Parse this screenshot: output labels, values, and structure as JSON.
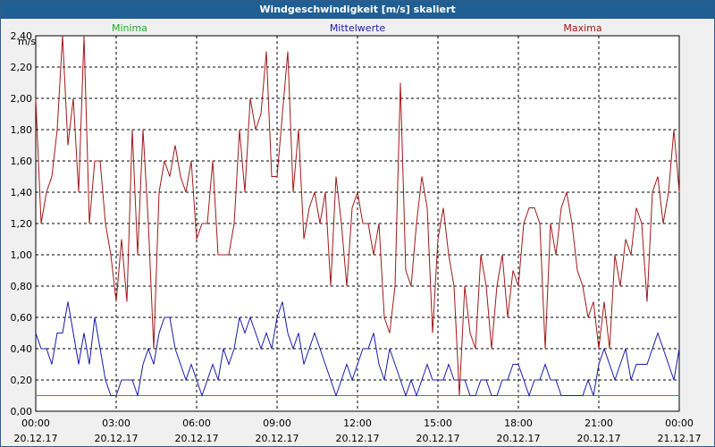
{
  "window": {
    "title": "Windgeschwindigkeit [m/s] skaliert"
  },
  "chart_data": {
    "type": "line",
    "title": "Windgeschwindigkeit [m/s] skaliert",
    "ylabel": "m/s",
    "xlabel": "",
    "ylim": [
      0,
      2.4
    ],
    "xlim": [
      0,
      24
    ],
    "grid": true,
    "legend_placement": "top",
    "y_ticks": [
      "0,00",
      "0,20",
      "0,40",
      "0,60",
      "0,80",
      "1,00",
      "1,20",
      "1,40",
      "1,60",
      "1,80",
      "2,00",
      "2,20",
      "2,40"
    ],
    "x_ticks": [
      {
        "time": "00:00",
        "date": "20.12.17"
      },
      {
        "time": "03:00",
        "date": "20.12.17"
      },
      {
        "time": "06:00",
        "date": "20.12.17"
      },
      {
        "time": "09:00",
        "date": "20.12.17"
      },
      {
        "time": "12:00",
        "date": "20.12.17"
      },
      {
        "time": "15:00",
        "date": "20.12.17"
      },
      {
        "time": "18:00",
        "date": "20.12.17"
      },
      {
        "time": "21:00",
        "date": "20.12.17"
      },
      {
        "time": "00:00",
        "date": "21.12.17"
      }
    ],
    "x_hours": [
      0,
      0.2,
      0.4,
      0.6,
      0.8,
      1,
      1.2,
      1.4,
      1.6,
      1.8,
      2,
      2.2,
      2.4,
      2.6,
      2.8,
      3,
      3.2,
      3.4,
      3.6,
      3.8,
      4,
      4.2,
      4.4,
      4.6,
      4.8,
      5,
      5.2,
      5.4,
      5.6,
      5.8,
      6,
      6.2,
      6.4,
      6.6,
      6.8,
      7,
      7.2,
      7.4,
      7.6,
      7.8,
      8,
      8.2,
      8.4,
      8.6,
      8.8,
      9,
      9.2,
      9.4,
      9.6,
      9.8,
      10,
      10.2,
      10.4,
      10.6,
      10.8,
      11,
      11.2,
      11.4,
      11.6,
      11.8,
      12,
      12.2,
      12.4,
      12.6,
      12.8,
      13,
      13.2,
      13.4,
      13.6,
      13.8,
      14,
      14.2,
      14.4,
      14.6,
      14.8,
      15,
      15.2,
      15.4,
      15.6,
      15.8,
      16,
      16.2,
      16.4,
      16.6,
      16.8,
      17,
      17.2,
      17.4,
      17.6,
      17.8,
      18,
      18.2,
      18.4,
      18.6,
      18.8,
      19,
      19.2,
      19.4,
      19.6,
      19.8,
      20,
      20.2,
      20.4,
      20.6,
      20.8,
      21,
      21.2,
      21.4,
      21.6,
      21.8,
      22,
      22.2,
      22.4,
      22.6,
      22.8,
      23,
      23.2,
      23.4,
      23.6,
      23.8,
      24
    ],
    "series": [
      {
        "name": "Minima",
        "color": "#22aa22",
        "values": [
          0.1,
          0.1,
          0.1,
          0.1,
          0.1,
          0.1,
          0.1,
          0.1,
          0.1,
          0.1,
          0.1,
          0.1,
          0.1,
          0.1,
          0.1,
          0.1,
          0.1,
          0.1,
          0.1,
          0.1,
          0.1,
          0.1,
          0.1,
          0.1,
          0.1,
          0.1,
          0.1,
          0.1,
          0.1,
          0.1,
          0.1,
          0.1,
          0.1,
          0.1,
          0.1,
          0.1,
          0.1,
          0.1,
          0.1,
          0.1,
          0.1,
          0.1,
          0.1,
          0.1,
          0.1,
          0.1,
          0.1,
          0.1,
          0.1,
          0.1,
          0.1,
          0.1,
          0.1,
          0.1,
          0.1,
          0.1,
          0.1,
          0.1,
          0.1,
          0.1,
          0.1,
          0.1,
          0.1,
          0.1,
          0.1,
          0.1,
          0.1,
          0.1,
          0.1,
          0.1,
          0.1,
          0.1,
          0.1,
          0.1,
          0.1,
          0.1,
          0.1,
          0.1,
          0.1,
          0.1,
          0.1,
          0.1,
          0.1,
          0.1,
          0.1,
          0.1,
          0.1,
          0.1,
          0.1,
          0.1,
          0.1,
          0.1,
          0.1,
          0.1,
          0.1,
          0.1,
          0.1,
          0.1,
          0.1,
          0.1,
          0.1,
          0.1,
          0.1,
          0.1,
          0.1,
          0.1,
          0.1,
          0.1,
          0.1,
          0.1,
          0.1,
          0.1,
          0.1,
          0.1,
          0.1,
          0.1,
          0.1,
          0.1,
          0.1,
          0.1,
          0.1
        ]
      },
      {
        "name": "Mittelwerte",
        "color": "#1a1aaa",
        "values": [
          0.5,
          0.4,
          0.4,
          0.3,
          0.5,
          0.5,
          0.7,
          0.5,
          0.3,
          0.5,
          0.3,
          0.6,
          0.4,
          0.2,
          0.1,
          0.1,
          0.2,
          0.2,
          0.2,
          0.1,
          0.3,
          0.4,
          0.3,
          0.5,
          0.6,
          0.6,
          0.4,
          0.3,
          0.2,
          0.3,
          0.2,
          0.1,
          0.2,
          0.3,
          0.2,
          0.4,
          0.3,
          0.4,
          0.6,
          0.5,
          0.6,
          0.5,
          0.4,
          0.5,
          0.4,
          0.6,
          0.7,
          0.5,
          0.4,
          0.5,
          0.3,
          0.4,
          0.5,
          0.4,
          0.3,
          0.2,
          0.1,
          0.2,
          0.3,
          0.2,
          0.3,
          0.4,
          0.4,
          0.5,
          0.3,
          0.2,
          0.4,
          0.3,
          0.2,
          0.1,
          0.2,
          0.1,
          0.2,
          0.3,
          0.2,
          0.2,
          0.2,
          0.3,
          0.2,
          0.2,
          0.2,
          0.1,
          0.1,
          0.2,
          0.2,
          0.1,
          0.1,
          0.2,
          0.2,
          0.3,
          0.3,
          0.2,
          0.1,
          0.2,
          0.2,
          0.3,
          0.2,
          0.2,
          0.1,
          0.1,
          0.1,
          0.1,
          0.1,
          0.2,
          0.1,
          0.3,
          0.4,
          0.3,
          0.2,
          0.3,
          0.4,
          0.2,
          0.3,
          0.3,
          0.3,
          0.4,
          0.5,
          0.4,
          0.3,
          0.2,
          0.4
        ]
      },
      {
        "name": "Maxima",
        "color": "#a01818",
        "values": [
          2.0,
          1.2,
          1.4,
          1.5,
          1.8,
          2.4,
          1.7,
          2.0,
          1.4,
          2.4,
          1.2,
          1.6,
          1.6,
          1.2,
          1.0,
          0.7,
          1.1,
          0.7,
          1.8,
          1.0,
          1.8,
          1.2,
          0.4,
          1.4,
          1.6,
          1.5,
          1.7,
          1.5,
          1.4,
          1.6,
          1.1,
          1.2,
          1.2,
          1.6,
          1.0,
          1.0,
          1.0,
          1.2,
          1.8,
          1.4,
          2.0,
          1.8,
          1.9,
          2.3,
          1.5,
          1.5,
          1.9,
          2.3,
          1.4,
          1.8,
          1.1,
          1.3,
          1.4,
          1.2,
          1.4,
          0.8,
          1.5,
          1.2,
          0.8,
          1.3,
          1.4,
          1.2,
          1.2,
          1.0,
          1.2,
          0.6,
          0.5,
          0.8,
          2.1,
          0.9,
          0.8,
          1.2,
          1.5,
          1.3,
          0.5,
          1.1,
          1.3,
          1.0,
          0.8,
          0.1,
          0.8,
          0.5,
          0.4,
          1.0,
          0.8,
          0.4,
          0.8,
          1.0,
          0.6,
          0.9,
          0.8,
          1.2,
          1.3,
          1.3,
          1.2,
          0.4,
          1.2,
          1.0,
          1.3,
          1.4,
          1.2,
          0.9,
          0.8,
          0.6,
          0.7,
          0.4,
          0.7,
          0.4,
          1.0,
          0.8,
          1.1,
          1.0,
          1.3,
          1.2,
          0.7,
          1.4,
          1.5,
          1.2,
          1.4,
          1.8,
          1.4
        ]
      }
    ]
  }
}
